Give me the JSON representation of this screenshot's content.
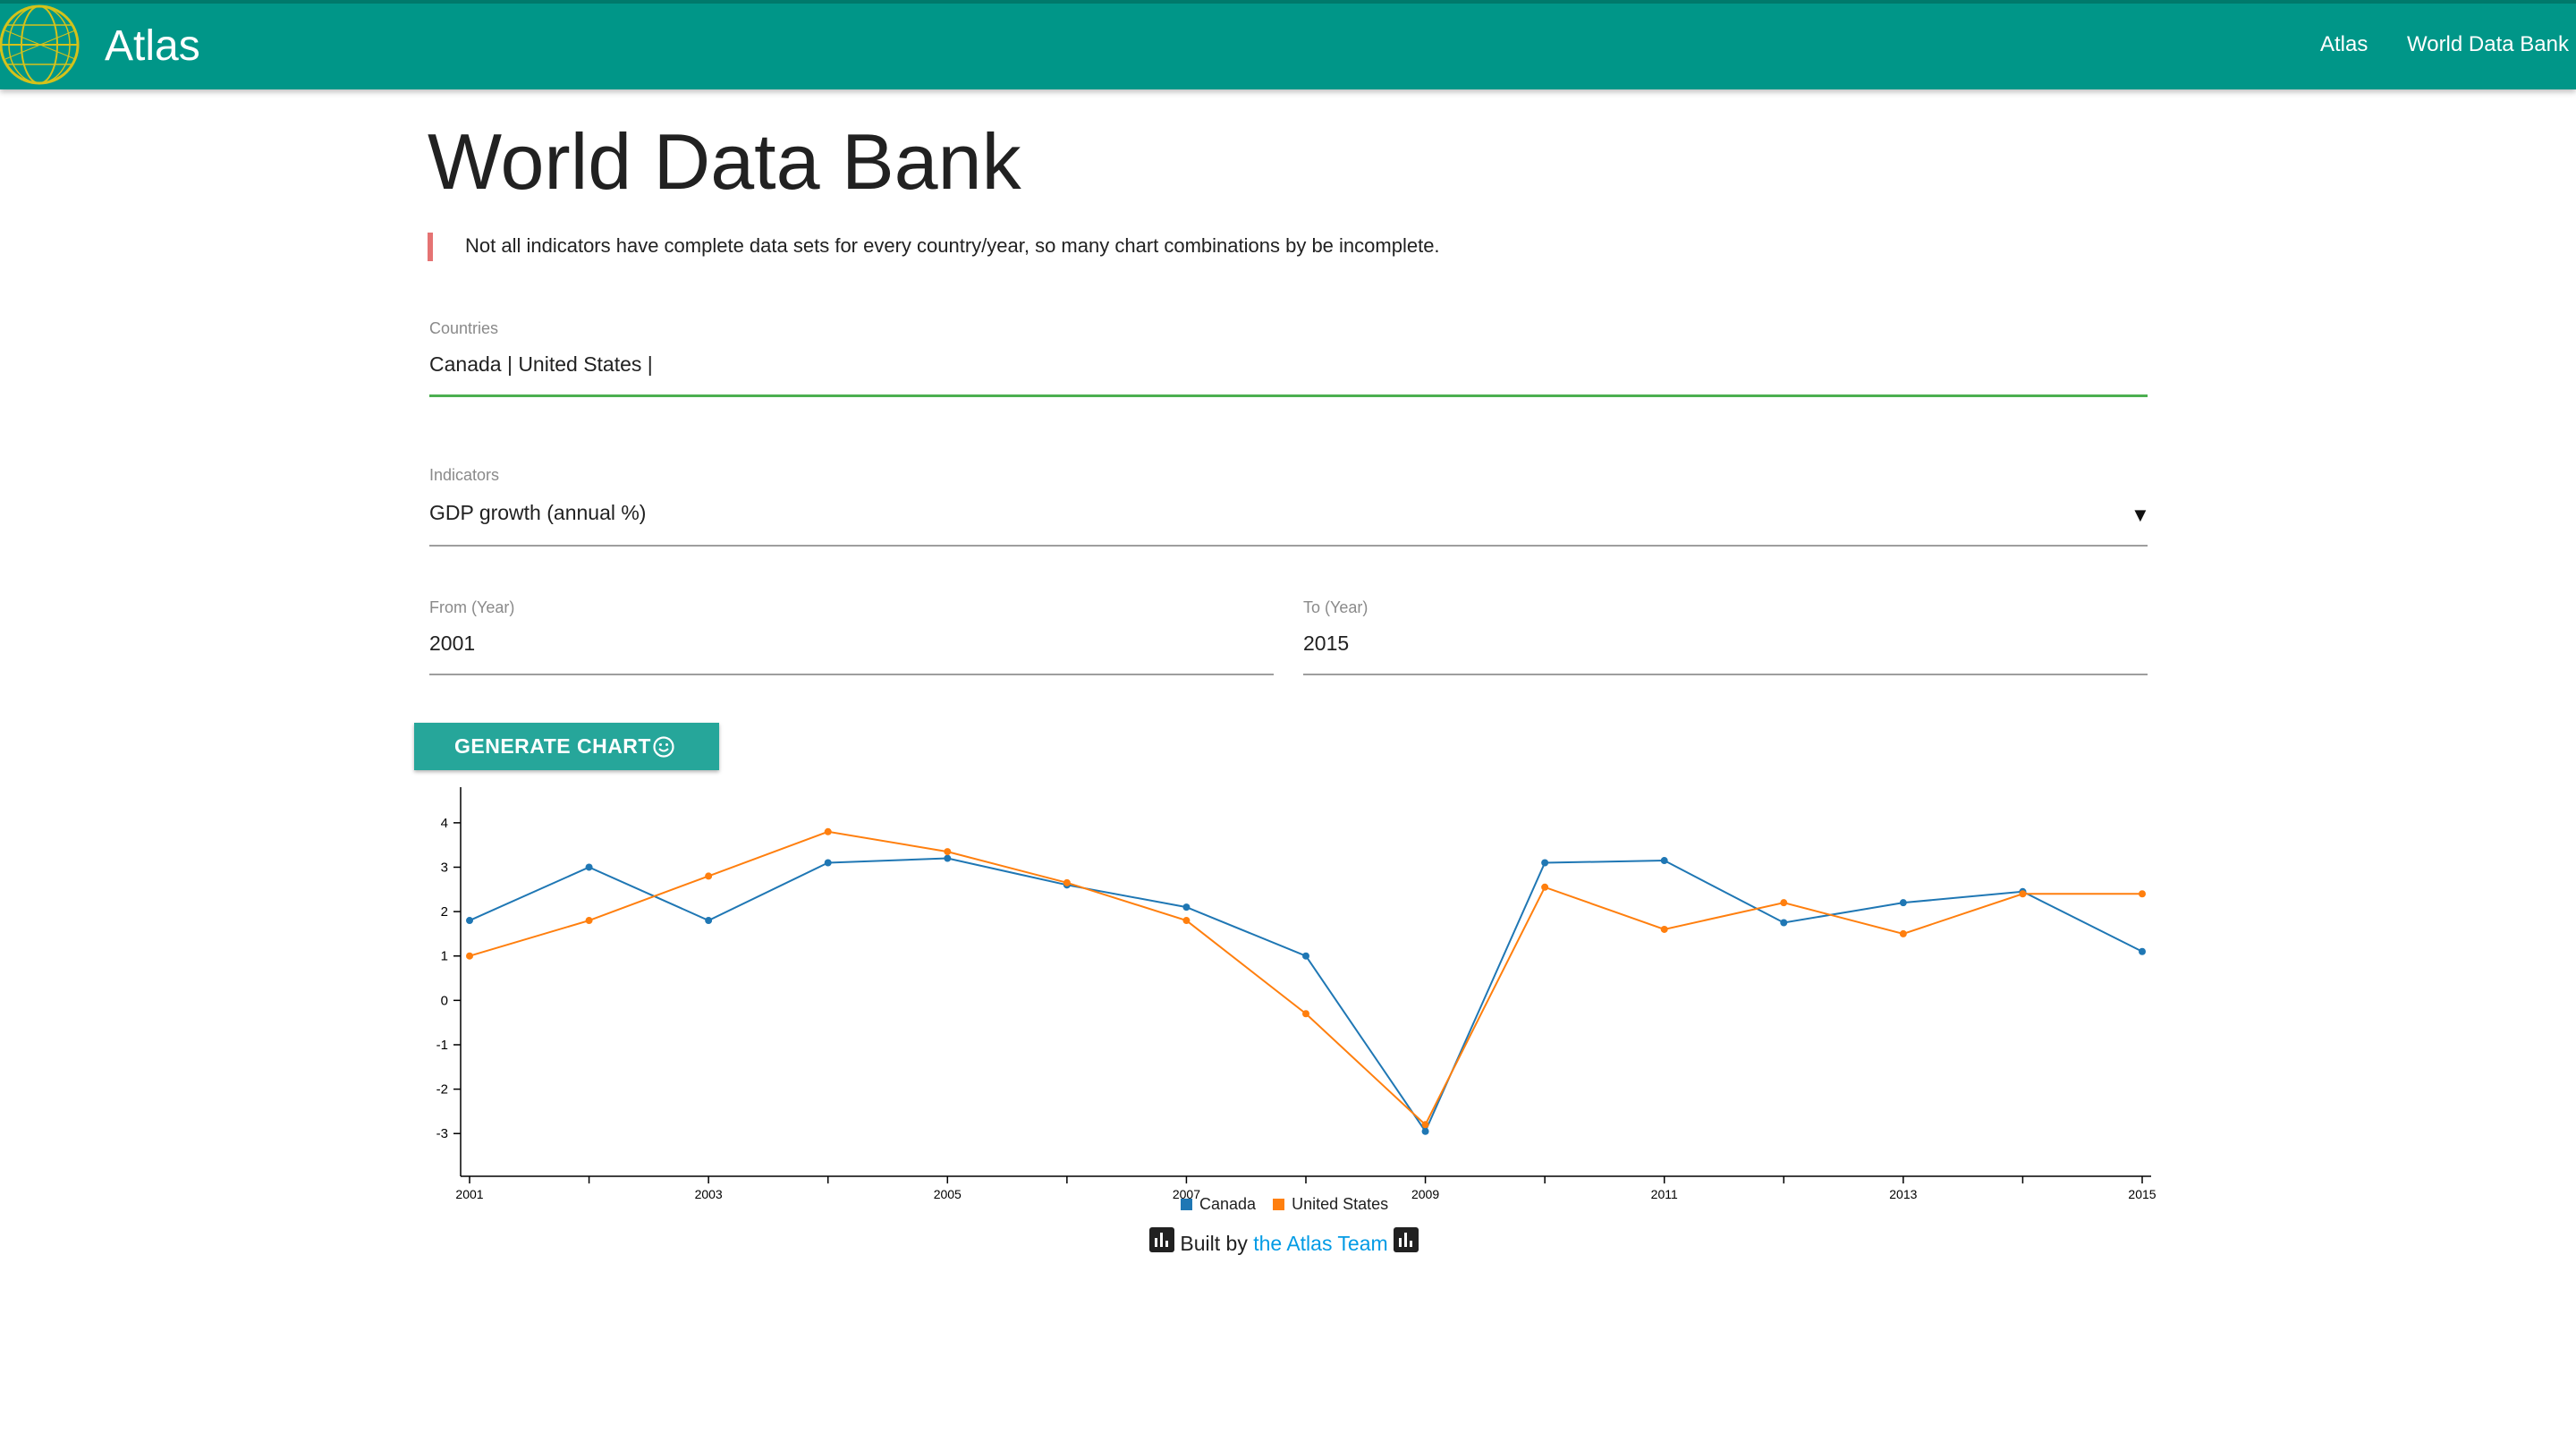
{
  "navbar": {
    "brand": "Atlas",
    "links": [
      "Atlas",
      "World Data Bank"
    ],
    "logo_icon": "globe-icon",
    "color": "#009688"
  },
  "page": {
    "title": "World Data Bank",
    "note": "Not all indicators have complete data sets for every country/year, so many chart combinations by be incomplete."
  },
  "form": {
    "countries": {
      "label": "Countries",
      "value": "Canada | United States |",
      "accent": "#4caf50"
    },
    "indicators": {
      "label": "Indicators",
      "value": "GDP growth (annual %)",
      "icon": "dropdown-arrow-icon"
    },
    "from_year": {
      "label": "From (Year)",
      "value": "2001"
    },
    "to_year": {
      "label": "To (Year)",
      "value": "2015"
    },
    "generate_button": {
      "label": "GENERATE CHART",
      "icon": "smiley-icon",
      "color": "#26a69a"
    }
  },
  "chart_data": {
    "type": "line",
    "x": [
      2001,
      2002,
      2003,
      2004,
      2005,
      2006,
      2007,
      2008,
      2009,
      2010,
      2011,
      2012,
      2013,
      2014,
      2015
    ],
    "x_tick_labels": [
      "2001",
      "2003",
      "2005",
      "2007",
      "2009",
      "2011",
      "2013",
      "2015"
    ],
    "y_tick_labels": [
      "4",
      "3",
      "2",
      "1",
      "0",
      "-1",
      "-2",
      "-3"
    ],
    "ylim": [
      -3.6,
      4.4
    ],
    "grid": false,
    "legend_position": "bottom",
    "series": [
      {
        "name": "Canada",
        "color": "#1f77b4",
        "values": [
          1.8,
          3.0,
          1.8,
          3.1,
          3.2,
          2.6,
          2.1,
          1.0,
          -2.95,
          3.1,
          3.15,
          1.75,
          2.2,
          2.45,
          1.1
        ]
      },
      {
        "name": "United States",
        "color": "#ff7f0e",
        "values": [
          1.0,
          1.8,
          2.8,
          3.8,
          3.35,
          2.65,
          1.8,
          -0.3,
          -2.8,
          2.55,
          1.6,
          2.2,
          1.5,
          2.4,
          2.4
        ]
      }
    ]
  },
  "footer": {
    "prefix": "Built by",
    "link_text": "the Atlas Team",
    "icon": "bar-chart-icon"
  }
}
